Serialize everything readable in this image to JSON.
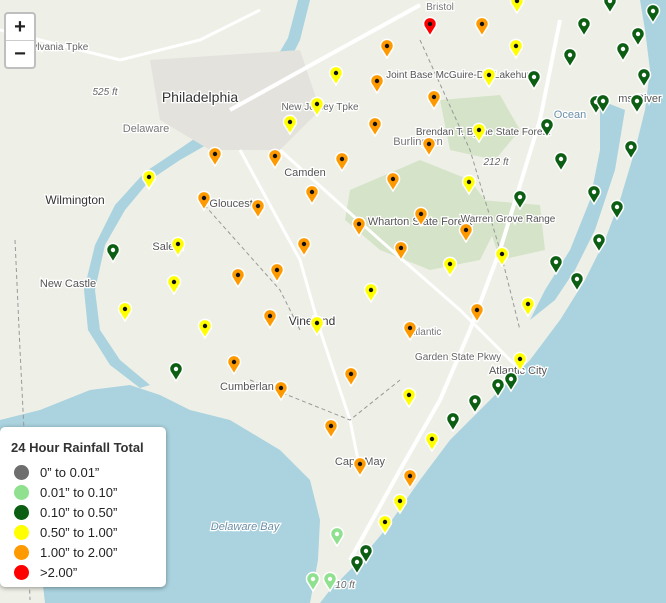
{
  "zoom": {
    "in": "+",
    "out": "−"
  },
  "labels": [
    "Philadelphia",
    "Wilmington",
    "Camden",
    "Gloucester",
    "Salem",
    "New Castle",
    "Vineland",
    "Cumberland",
    "Cape May",
    "Atlantic City",
    "Delaware Bay",
    "Ocean",
    "Burlington",
    "Wharton State Forest",
    "Brendan T. Byrne State Forest",
    "Warren Grove Range",
    "Joint Base McGuire-Dix Lakehurst",
    "Delaware",
    "525 ft",
    "212 ft",
    "10 ft",
    "New Jersey Tpke",
    "Garden State Pkwy",
    "Atlantic",
    "ms River",
    "nsylvania Tpke",
    "Bristol"
  ],
  "legend": {
    "title": "24 Hour Rainfall Total",
    "items": [
      {
        "label": "0” to 0.01”",
        "color": "#6e6e6e"
      },
      {
        "label": "0.01” to 0.10”",
        "color": "#8fe08f"
      },
      {
        "label": "0.10” to 0.50”",
        "color": "#0b5e12"
      },
      {
        "label": "0.50” to 1.00”",
        "color": "#ffff00"
      },
      {
        "label": "1.00” to 2.00”",
        "color": "#ff9900"
      },
      {
        "label": ">2.00”",
        "color": "#ff0000"
      }
    ]
  }
}
